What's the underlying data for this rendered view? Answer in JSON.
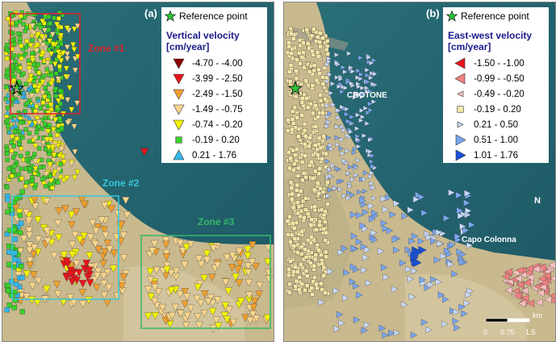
{
  "panel_a": {
    "label": "(a)",
    "legend": {
      "ref_label": "Reference point",
      "title": "Vertical velocity\n[cm/year]",
      "title_line1": "Vertical velocity",
      "title_line2": "[cm/year]",
      "classes": [
        {
          "range": "-4.70 - -4.00",
          "color": "#8b0000",
          "shape": "triangle-down"
        },
        {
          "range": "-3.99 - -2.50",
          "color": "#e8141c",
          "shape": "triangle-down"
        },
        {
          "range": "-2.49 - -1.50",
          "color": "#f0a030",
          "shape": "triangle-down"
        },
        {
          "range": "-1.49 - -0.75",
          "color": "#f7d58c",
          "shape": "triangle-down"
        },
        {
          "range": "-0.74 - -0.20",
          "color": "#f4f400",
          "shape": "triangle-down"
        },
        {
          "range": "-0.19 - 0.20",
          "color": "#39d12a",
          "shape": "square"
        },
        {
          "range": "0.21 - 1.76",
          "color": "#33b7e8",
          "shape": "triangle-up"
        }
      ]
    },
    "zones": [
      {
        "label": "Zone #1",
        "color": "#e0232a"
      },
      {
        "label": "Zone #2",
        "color": "#38c8dc"
      },
      {
        "label": "Zone #3",
        "color": "#34b86a"
      }
    ]
  },
  "panel_b": {
    "label": "(b)",
    "legend": {
      "ref_label": "Reference point",
      "title_line1": "East-west velocity",
      "title_line2": "[cm/year]",
      "classes": [
        {
          "range": "-1.50 - -1.00",
          "color": "#e8141c",
          "shape": "triangle-left"
        },
        {
          "range": "-0.99 - -0.50",
          "color": "#f08080",
          "shape": "triangle-left"
        },
        {
          "range": "-0.49 - -0.20",
          "color": "#f5c0c0",
          "shape": "triangle-left-small"
        },
        {
          "range": "-0.19 - 0.20",
          "color": "#f4e6a8",
          "shape": "square"
        },
        {
          "range": "0.21 - 0.50",
          "color": "#c8d8f8",
          "shape": "triangle-right-small"
        },
        {
          "range": "0.51 - 1.00",
          "color": "#7aa6ee",
          "shape": "triangle-right"
        },
        {
          "range": "1.01 - 1.76",
          "color": "#1a4fd8",
          "shape": "triangle-right"
        }
      ]
    },
    "places": {
      "city": "CROTONE",
      "cape": "Capo Colonna"
    },
    "scalebar": {
      "unit": "km",
      "ticks": [
        "0",
        "0.75",
        "1.5"
      ]
    },
    "north_symbol": "N"
  },
  "colors": {
    "sea": "#1f5f6b",
    "land": "#c9b98f",
    "reference_star": "#2ec43a"
  }
}
